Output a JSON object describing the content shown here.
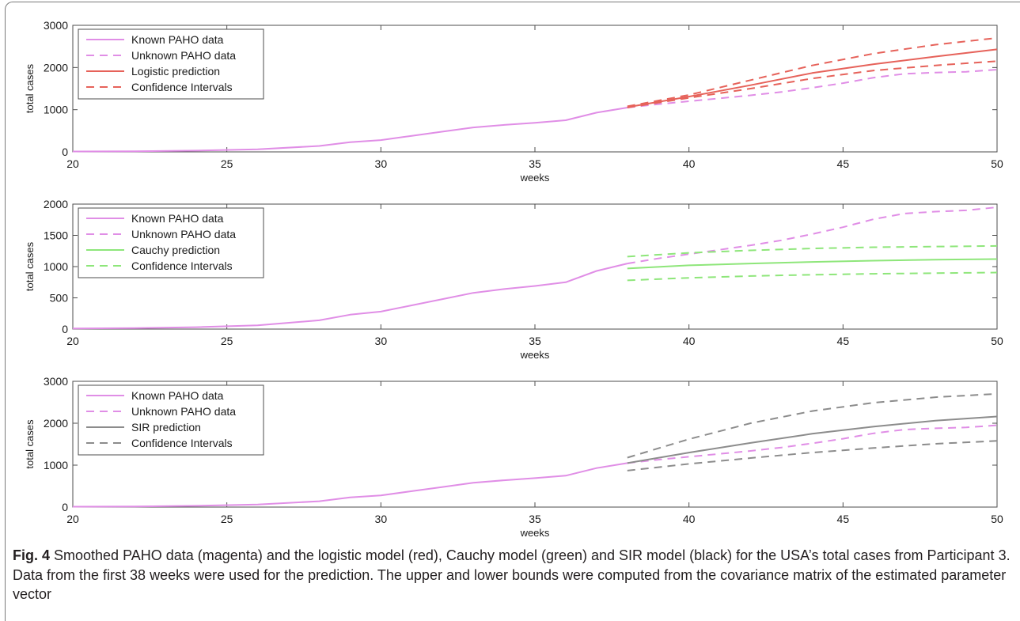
{
  "chart_data": [
    {
      "type": "line",
      "xlabel": "weeks",
      "ylabel": "total cases",
      "xlim": [
        20,
        50
      ],
      "ylim": [
        0,
        3000
      ],
      "xticks": [
        20,
        25,
        30,
        35,
        40,
        45,
        50
      ],
      "yticks": [
        0,
        1000,
        2000,
        3000
      ],
      "legend_position": "top-left",
      "series": [
        {
          "name": "Known PAHO data",
          "color": "#e08ee6",
          "style": "solid",
          "x": [
            20,
            22,
            24,
            26,
            28,
            29,
            30,
            31,
            32,
            33,
            34,
            35,
            36,
            37,
            38
          ],
          "y": [
            10,
            15,
            30,
            60,
            140,
            230,
            280,
            380,
            480,
            580,
            640,
            690,
            750,
            930,
            1050
          ]
        },
        {
          "name": "Unknown PAHO data",
          "color": "#e08ee6",
          "style": "dashed",
          "x": [
            38,
            39,
            40,
            41,
            42,
            43,
            44,
            45,
            46,
            47,
            48,
            49,
            50
          ],
          "y": [
            1050,
            1130,
            1200,
            1270,
            1340,
            1420,
            1520,
            1630,
            1760,
            1850,
            1880,
            1900,
            1950
          ]
        },
        {
          "name": "Logistic prediction",
          "color": "#e6625a",
          "style": "solid",
          "x": [
            38,
            40,
            42,
            44,
            46,
            48,
            50
          ],
          "y": [
            1060,
            1310,
            1580,
            1870,
            2080,
            2260,
            2430
          ]
        },
        {
          "name": "Confidence Intervals",
          "color": "#e6625a",
          "style": "dashed",
          "x": [
            38,
            40,
            42,
            44,
            46,
            48,
            50
          ],
          "y": [
            1080,
            1350,
            1700,
            2050,
            2330,
            2540,
            2700
          ]
        },
        {
          "name": "",
          "color": "#e6625a",
          "style": "dashed",
          "x": [
            38,
            40,
            42,
            44,
            46,
            48,
            50
          ],
          "y": [
            1050,
            1280,
            1500,
            1740,
            1930,
            2050,
            2150
          ]
        }
      ]
    },
    {
      "type": "line",
      "xlabel": "weeks",
      "ylabel": "total cases",
      "xlim": [
        20,
        50
      ],
      "ylim": [
        0,
        2000
      ],
      "xticks": [
        20,
        25,
        30,
        35,
        40,
        45,
        50
      ],
      "yticks": [
        0,
        500,
        1000,
        1500,
        2000
      ],
      "legend_position": "top-left",
      "series": [
        {
          "name": "Known PAHO data",
          "color": "#e08ee6",
          "style": "solid",
          "x": [
            20,
            22,
            24,
            26,
            28,
            29,
            30,
            31,
            32,
            33,
            34,
            35,
            36,
            37,
            38
          ],
          "y": [
            10,
            15,
            30,
            60,
            140,
            230,
            280,
            380,
            480,
            580,
            640,
            690,
            750,
            930,
            1050
          ]
        },
        {
          "name": "Unknown PAHO data",
          "color": "#e08ee6",
          "style": "dashed",
          "x": [
            38,
            39,
            40,
            41,
            42,
            43,
            44,
            45,
            46,
            47,
            48,
            49,
            50
          ],
          "y": [
            1050,
            1130,
            1200,
            1270,
            1340,
            1420,
            1520,
            1630,
            1760,
            1850,
            1880,
            1900,
            1950
          ]
        },
        {
          "name": "Cauchy prediction",
          "color": "#8ee67a",
          "style": "solid",
          "x": [
            38,
            40,
            42,
            44,
            46,
            48,
            50
          ],
          "y": [
            970,
            1020,
            1050,
            1075,
            1095,
            1110,
            1120
          ]
        },
        {
          "name": "Confidence Intervals",
          "color": "#8ee67a",
          "style": "dashed",
          "x": [
            38,
            40,
            42,
            44,
            46,
            48,
            50
          ],
          "y": [
            1160,
            1220,
            1260,
            1290,
            1310,
            1320,
            1330
          ]
        },
        {
          "name": "",
          "color": "#8ee67a",
          "style": "dashed",
          "x": [
            38,
            40,
            42,
            44,
            46,
            48,
            50
          ],
          "y": [
            780,
            820,
            850,
            870,
            885,
            895,
            905
          ]
        }
      ]
    },
    {
      "type": "line",
      "xlabel": "weeks",
      "ylabel": "total cases",
      "xlim": [
        20,
        50
      ],
      "ylim": [
        0,
        3000
      ],
      "xticks": [
        20,
        25,
        30,
        35,
        40,
        45,
        50
      ],
      "yticks": [
        0,
        1000,
        2000,
        3000
      ],
      "legend_position": "top-left",
      "series": [
        {
          "name": "Known PAHO data",
          "color": "#e08ee6",
          "style": "solid",
          "x": [
            20,
            22,
            24,
            26,
            28,
            29,
            30,
            31,
            32,
            33,
            34,
            35,
            36,
            37,
            38
          ],
          "y": [
            10,
            15,
            30,
            60,
            140,
            230,
            280,
            380,
            480,
            580,
            640,
            690,
            750,
            930,
            1050
          ]
        },
        {
          "name": "Unknown PAHO data",
          "color": "#e08ee6",
          "style": "dashed",
          "x": [
            38,
            39,
            40,
            41,
            42,
            43,
            44,
            45,
            46,
            47,
            48,
            49,
            50
          ],
          "y": [
            1050,
            1130,
            1200,
            1270,
            1340,
            1420,
            1520,
            1630,
            1760,
            1850,
            1880,
            1900,
            1950
          ]
        },
        {
          "name": "SIR prediction",
          "color": "#8c8c8c",
          "style": "solid",
          "x": [
            38,
            40,
            42,
            44,
            46,
            48,
            50
          ],
          "y": [
            1050,
            1300,
            1530,
            1750,
            1920,
            2060,
            2160
          ]
        },
        {
          "name": "Confidence Intervals",
          "color": "#8c8c8c",
          "style": "dashed",
          "x": [
            38,
            40,
            42,
            44,
            46,
            48,
            50
          ],
          "y": [
            1180,
            1620,
            2000,
            2290,
            2490,
            2620,
            2700
          ]
        },
        {
          "name": "",
          "color": "#8c8c8c",
          "style": "dashed",
          "x": [
            38,
            40,
            42,
            44,
            46,
            48,
            50
          ],
          "y": [
            870,
            1030,
            1170,
            1300,
            1410,
            1510,
            1580
          ]
        }
      ]
    }
  ],
  "caption": {
    "label": "Fig. 4",
    "text": " Smoothed PAHO data (magenta) and the logistic model (red), Cauchy model (green) and SIR model (black) for the USA’s total cases from Participant 3. Data from the first 38 weeks were used for the prediction. The upper and lower bounds were computed from the covariance matrix of the estimated parameter vector"
  }
}
